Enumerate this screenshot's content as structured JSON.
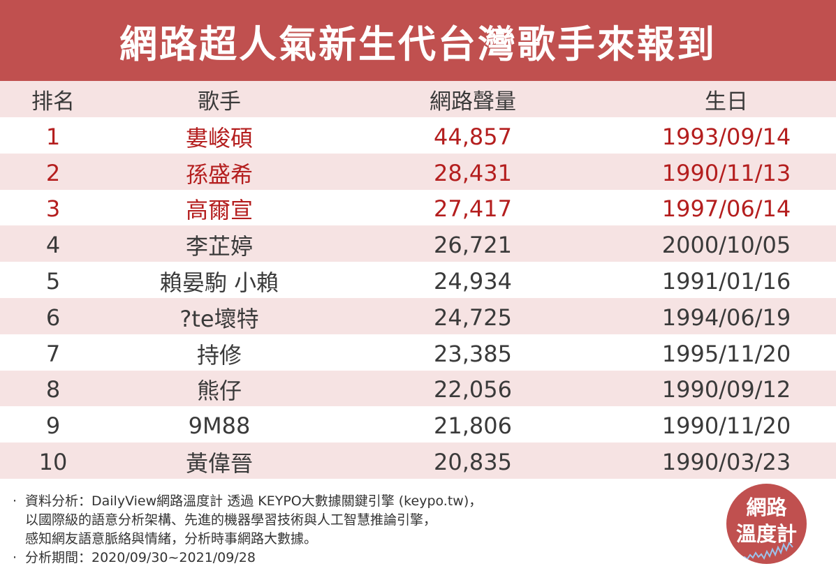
{
  "title": "網路超人氣新生代台灣歌手來報到",
  "table": {
    "headers": {
      "rank": "排名",
      "singer": "歌手",
      "volume": "網路聲量",
      "birthday": "生日"
    },
    "rows": [
      {
        "rank": "1",
        "singer": "婁峻碩",
        "volume": "44,857",
        "birthday": "1993/09/14"
      },
      {
        "rank": "2",
        "singer": "孫盛希",
        "volume": "28,431",
        "birthday": "1990/11/13"
      },
      {
        "rank": "3",
        "singer": "高爾宣",
        "volume": "27,417",
        "birthday": "1997/06/14"
      },
      {
        "rank": "4",
        "singer": "李芷婷",
        "volume": "26,721",
        "birthday": "2000/10/05"
      },
      {
        "rank": "5",
        "singer": "賴晏駒 小賴",
        "volume": "24,934",
        "birthday": "1991/01/16"
      },
      {
        "rank": "6",
        "singer": "?te壞特",
        "volume": "24,725",
        "birthday": "1994/06/19"
      },
      {
        "rank": "7",
        "singer": "持修",
        "volume": "23,385",
        "birthday": "1995/11/20"
      },
      {
        "rank": "8",
        "singer": "熊仔",
        "volume": "22,056",
        "birthday": "1990/09/12"
      },
      {
        "rank": "9",
        "singer": "9M88",
        "volume": "21,806",
        "birthday": "1990/11/20"
      },
      {
        "rank": "10",
        "singer": "黃偉晉",
        "volume": "20,835",
        "birthday": "1990/03/23"
      }
    ]
  },
  "footer": {
    "bullet": "‧",
    "analysis_line1": "資料分析：DailyView網路溫度計 透過 KEYPO大數據關鍵引擎 (keypo.tw)，",
    "analysis_line2": "以國際級的語意分析架構、先進的機器學習技術與人工智慧推論引擎，",
    "analysis_line3": "感知網友語意脈絡與情緒，分析時事網路大數據。",
    "period": "分析期間：2020/09/30~2021/09/28"
  },
  "logo": {
    "line1": "網路",
    "line2": "溫度計"
  },
  "colors": {
    "brand": "#c0504f",
    "highlight_text": "#b41e1e",
    "row_shade": "#f6e3e3"
  }
}
